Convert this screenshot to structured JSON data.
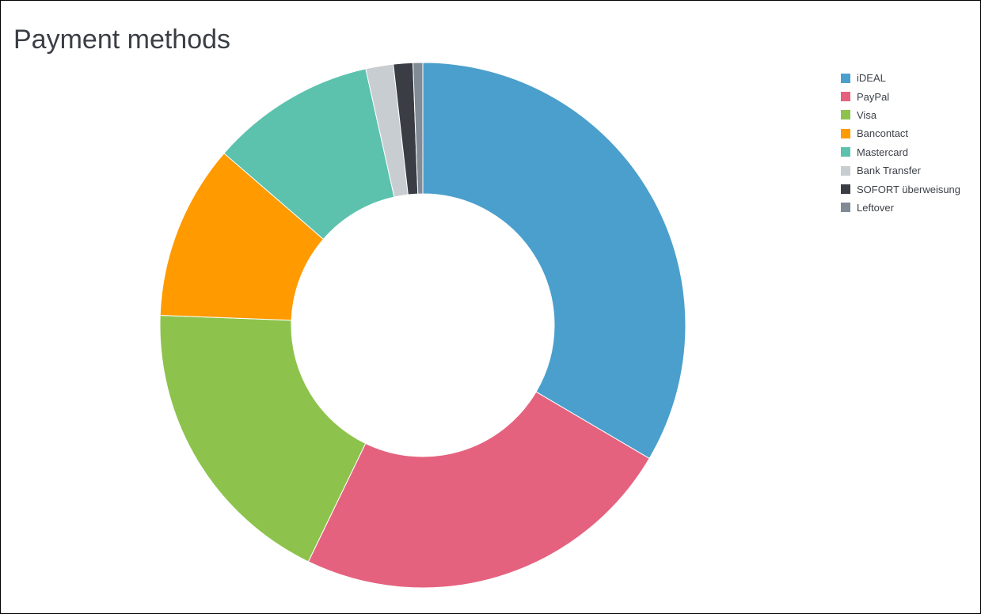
{
  "chart_data": {
    "type": "pie",
    "variant": "donut",
    "title": "Payment methods",
    "legend_position": "top-right",
    "slices": [
      {
        "label": "iDEAL",
        "value": 33.6,
        "color": "#4b9fcd"
      },
      {
        "label": "PayPal",
        "value": 23.8,
        "color": "#e5627e"
      },
      {
        "label": "Visa",
        "value": 18.5,
        "color": "#8dc34c"
      },
      {
        "label": "Bancontact",
        "value": 10.8,
        "color": "#ff9a00"
      },
      {
        "label": "Mastercard",
        "value": 10.2,
        "color": "#5cc2ae"
      },
      {
        "label": "Bank Transfer",
        "value": 1.7,
        "color": "#c8cdd1"
      },
      {
        "label": "SOFORT überweisung",
        "value": 1.2,
        "color": "#3a3d44"
      },
      {
        "label": "Leftover",
        "value": 0.6,
        "color": "#808b96"
      }
    ]
  }
}
